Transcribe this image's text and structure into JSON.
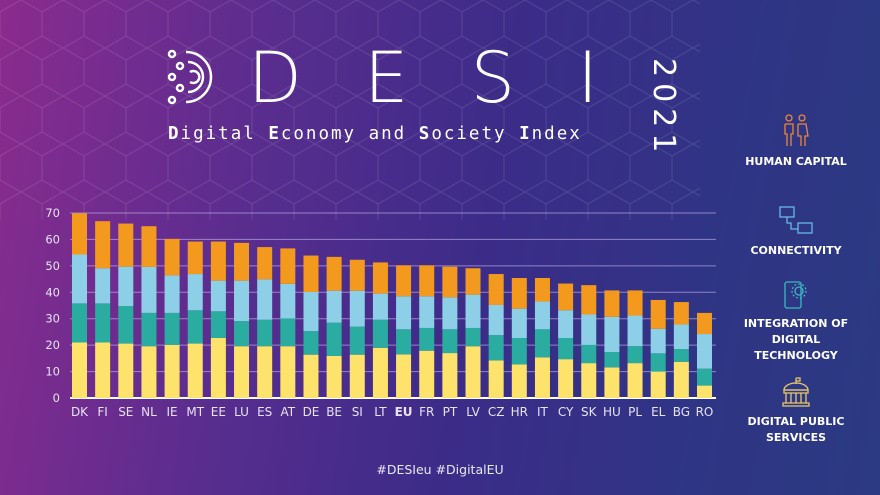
{
  "header": {
    "title": "D E S I",
    "year": "2021",
    "subtitle_parts": [
      {
        "t": "D",
        "b": true
      },
      {
        "t": "igital ",
        "b": false
      },
      {
        "t": "E",
        "b": true
      },
      {
        "t": "conomy and ",
        "b": false
      },
      {
        "t": "S",
        "b": true
      },
      {
        "t": "ociety ",
        "b": false
      },
      {
        "t": "I",
        "b": true
      },
      {
        "t": "ndex",
        "b": false
      }
    ]
  },
  "legend": [
    {
      "label": "HUMAN CAPITAL",
      "icon": "people-icon",
      "color": "#f39a1e"
    },
    {
      "label": "CONNECTIVITY",
      "icon": "network-computers-icon",
      "color": "#8ecfe8"
    },
    {
      "label": "INTEGRATION OF DIGITAL TECHNOLOGY",
      "icon": "phone-gear-icon",
      "color": "#2aada0"
    },
    {
      "label": "DIGITAL PUBLIC SERVICES",
      "icon": "government-building-icon",
      "color": "#fde36b"
    }
  ],
  "footer": "#DESIeu  #DigitalEU",
  "chart_data": {
    "type": "bar",
    "stacked": true,
    "ylim": [
      0,
      70
    ],
    "yticks": [
      0,
      10,
      20,
      30,
      40,
      50,
      60,
      70
    ],
    "grid": true,
    "legend_placement": "right",
    "highlight_category": "EU",
    "categories": [
      "DK",
      "FI",
      "SE",
      "NL",
      "IE",
      "MT",
      "EE",
      "LU",
      "ES",
      "AT",
      "DE",
      "BE",
      "SI",
      "LT",
      "EU",
      "FR",
      "PT",
      "LV",
      "CZ",
      "HR",
      "IT",
      "CY",
      "SK",
      "HU",
      "PL",
      "EL",
      "BG",
      "RO"
    ],
    "series": [
      {
        "name": "DIGITAL PUBLIC SERVICES",
        "color": "#fde36b",
        "values": [
          21.0,
          21.0,
          20.6,
          19.6,
          20.1,
          20.6,
          22.7,
          19.6,
          19.6,
          19.6,
          16.4,
          15.9,
          16.4,
          19.0,
          16.5,
          17.9,
          17.0,
          19.6,
          14.2,
          12.7,
          15.4,
          14.7,
          13.2,
          11.6,
          13.2,
          10.0,
          13.7,
          4.7
        ]
      },
      {
        "name": "INTEGRATION OF DIGITAL TECHNOLOGY",
        "color": "#2aada0",
        "values": [
          14.8,
          14.8,
          14.2,
          12.6,
          12.1,
          12.6,
          10.1,
          9.5,
          10.0,
          10.5,
          8.9,
          12.6,
          10.6,
          10.6,
          9.5,
          8.6,
          9.0,
          6.9,
          9.6,
          10.0,
          10.6,
          8.0,
          6.9,
          5.8,
          6.4,
          6.9,
          4.8,
          6.4
        ]
      },
      {
        "name": "CONNECTIVITY",
        "color": "#8ecfe8",
        "values": [
          18.5,
          13.3,
          14.9,
          17.4,
          14.2,
          13.7,
          11.6,
          15.3,
          15.3,
          13.1,
          14.8,
          12.1,
          13.6,
          9.9,
          12.5,
          12.0,
          12.1,
          12.6,
          11.4,
          11.1,
          10.5,
          10.5,
          11.5,
          13.3,
          11.6,
          9.3,
          9.3,
          13.1
        ]
      },
      {
        "name": "HUMAN CAPITAL",
        "color": "#f39a1e",
        "values": [
          15.6,
          17.8,
          16.3,
          15.4,
          13.8,
          12.3,
          14.8,
          14.3,
          12.2,
          13.4,
          13.8,
          12.8,
          11.7,
          11.8,
          11.7,
          11.7,
          11.6,
          10.0,
          11.7,
          11.6,
          8.9,
          10.1,
          11.1,
          10.0,
          9.5,
          10.9,
          8.5,
          8.0
        ]
      }
    ]
  }
}
